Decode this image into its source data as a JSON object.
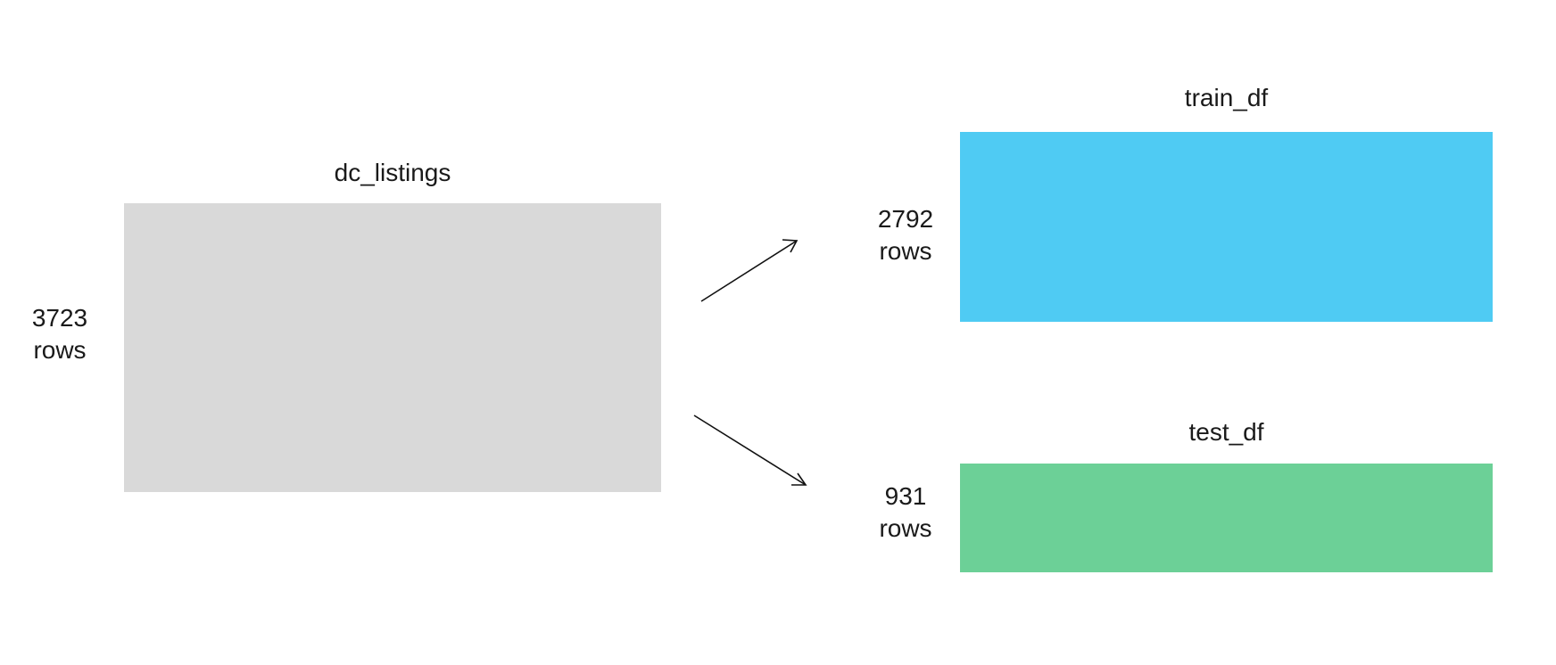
{
  "source": {
    "title": "dc_listings",
    "count": "3723",
    "unit": "rows",
    "color": "#d9d9d9"
  },
  "train": {
    "title": "train_df",
    "count": "2792",
    "unit": "rows",
    "color": "#4fcbf3"
  },
  "test": {
    "title": "test_df",
    "count": "931",
    "unit": "rows",
    "color": "#6cd097"
  },
  "arrow_color": "#111111"
}
